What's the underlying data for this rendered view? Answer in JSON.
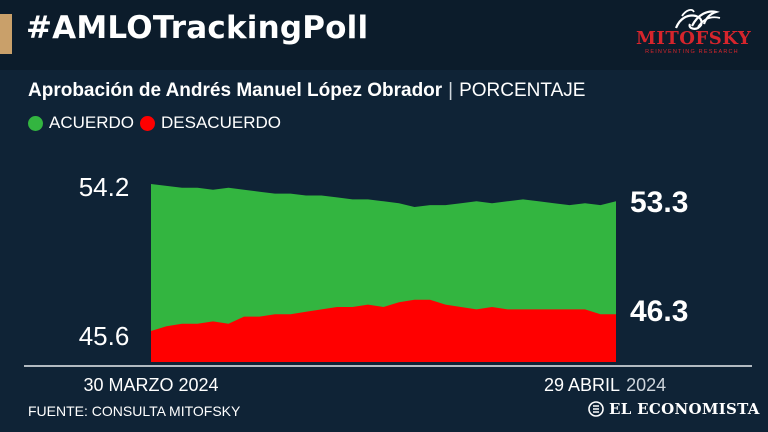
{
  "header": {
    "title": "#AMLOTrackingPoll",
    "logo_text": "MITOFSKY",
    "logo_tagline": "REINVENTING RESEARCH"
  },
  "subtitle": {
    "main": "Aprobación de Andrés Manuel López Obrador",
    "separator": "|",
    "unit": "PORCENTAJE"
  },
  "colors": {
    "acuerdo": "#33b540",
    "desacuerdo": "#ff0000",
    "accent": "#c9a06a",
    "brand_red": "#d6252c"
  },
  "chart_data": {
    "type": "area",
    "title": "Aprobación de Andrés Manuel López Obrador",
    "unit": "PORCENTAJE",
    "x_start_label": "30 MARZO 2024",
    "x_end_label_main": "29 ABRIL",
    "x_end_label_year": "2024",
    "series": [
      {
        "name": "ACUERDO",
        "start_label": "54.2",
        "end_label": "53.3",
        "values": [
          54.2,
          54.1,
          54.0,
          54.0,
          53.9,
          54.0,
          53.9,
          53.8,
          53.7,
          53.7,
          53.6,
          53.6,
          53.5,
          53.4,
          53.4,
          53.3,
          53.2,
          53.0,
          53.1,
          53.1,
          53.2,
          53.3,
          53.2,
          53.3,
          53.4,
          53.3,
          53.2,
          53.1,
          53.2,
          53.1,
          53.3
        ]
      },
      {
        "name": "DESACUERDO",
        "start_label": "45.6",
        "end_label": "46.3",
        "values": [
          45.6,
          45.8,
          45.9,
          45.9,
          46.0,
          45.9,
          46.2,
          46.2,
          46.3,
          46.3,
          46.4,
          46.5,
          46.6,
          46.6,
          46.7,
          46.6,
          46.8,
          46.9,
          46.9,
          46.7,
          46.6,
          46.5,
          46.6,
          46.5,
          46.5,
          46.5,
          46.5,
          46.5,
          46.5,
          46.3,
          46.3
        ]
      }
    ]
  },
  "footer": {
    "source": "FUENTE: CONSULTA MITOFSKY",
    "brand": "EL ECONOMISTA"
  }
}
